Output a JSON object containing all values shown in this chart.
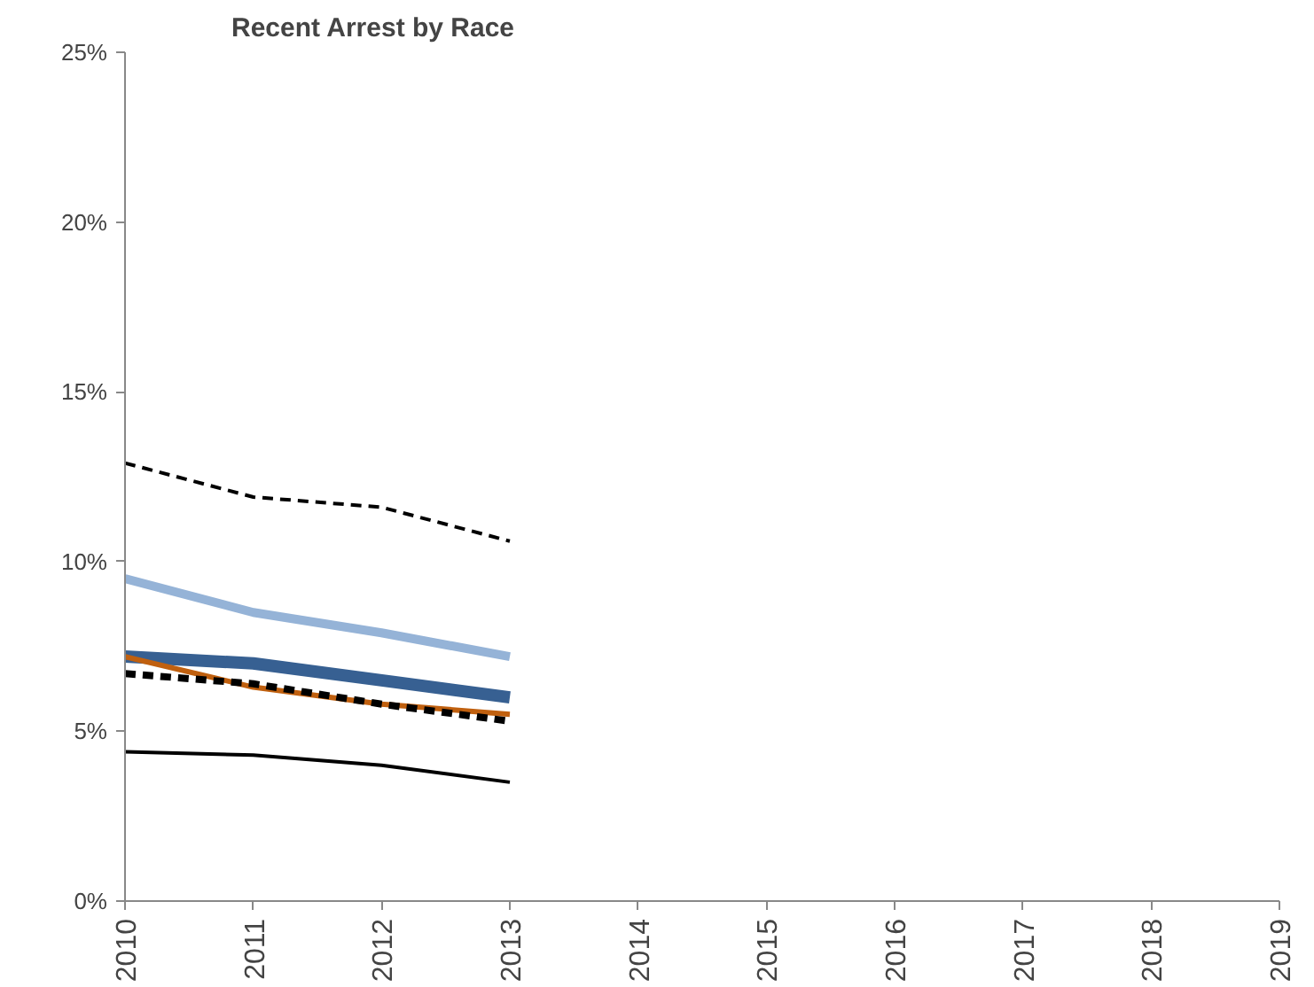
{
  "chart_data": {
    "type": "line",
    "title": "Recent Arrest by Race",
    "x": [
      2010,
      2011,
      2012,
      2013
    ],
    "series": [
      {
        "color": "#000000",
        "line_style": "dashed",
        "values": [
          12.9,
          11.9,
          11.6,
          10.6
        ]
      },
      {
        "color": "#95b3d7",
        "line_style": "solid",
        "values": [
          9.5,
          8.5,
          7.9,
          7.2
        ]
      },
      {
        "color": "#376092",
        "line_style": "solid",
        "values": [
          7.2,
          7.0,
          6.5,
          6.0
        ]
      },
      {
        "color": "#c0600f",
        "line_style": "solid",
        "values": [
          7.2,
          6.3,
          5.8,
          5.5
        ]
      },
      {
        "color": "#000000",
        "line_style": "dashed",
        "values": [
          6.7,
          6.4,
          5.8,
          5.3
        ]
      },
      {
        "color": "#000000",
        "line_style": "solid",
        "values": [
          4.4,
          4.3,
          4.0,
          3.5
        ]
      }
    ],
    "xlim": [
      2010,
      2019
    ],
    "xticks": [
      2010,
      2011,
      2012,
      2013,
      2014,
      2015,
      2016,
      2017,
      2018,
      2019
    ],
    "ylim": [
      0,
      25
    ],
    "yticks": [
      {
        "value": 0,
        "label": "0%"
      },
      {
        "value": 5,
        "label": "5%"
      },
      {
        "value": 10,
        "label": "10%"
      },
      {
        "value": 15,
        "label": "15%"
      },
      {
        "value": 20,
        "label": "20%"
      },
      {
        "value": 25,
        "label": "25%"
      }
    ],
    "grid": false
  }
}
